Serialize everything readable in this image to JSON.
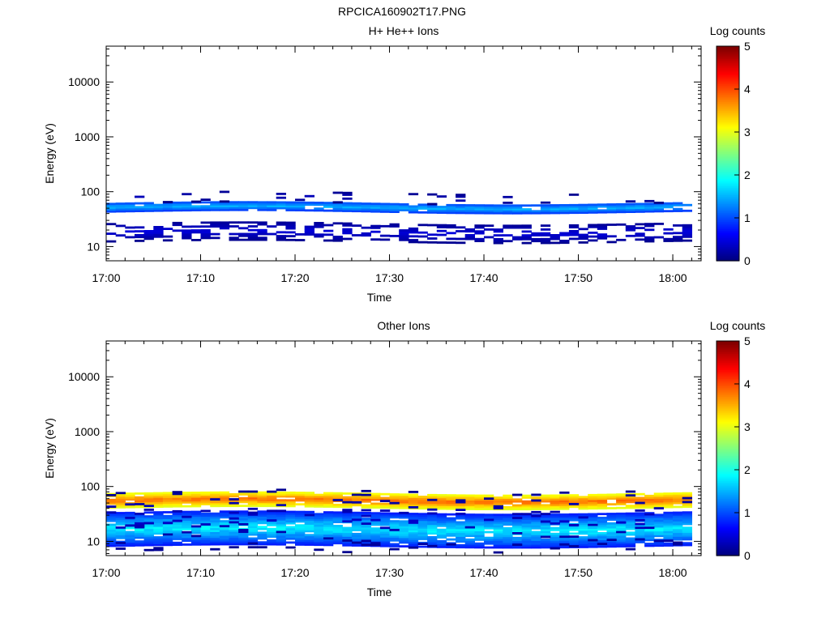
{
  "figure": {
    "title": "RPCICA160902T17.PNG"
  },
  "colors": {
    "colormap": "jet",
    "axis": "#000000",
    "background": "#ffffff"
  },
  "chart_data": [
    {
      "type": "heatmap",
      "title": "H+ He++ Ions",
      "xlabel": "Time",
      "ylabel": "Energy (eV)",
      "x_range": [
        "17:00",
        "18:03"
      ],
      "x_ticks": [
        "17:00",
        "17:10",
        "17:20",
        "17:30",
        "17:40",
        "17:50",
        "18:00"
      ],
      "y_scale": "log",
      "y_range": [
        5.5,
        45000
      ],
      "y_ticks": [
        "10",
        "100",
        "1000",
        "10000"
      ],
      "colorbar": {
        "label": "Log counts",
        "range": [
          0,
          5
        ],
        "ticks": [
          "0",
          "1",
          "2",
          "3",
          "4",
          "5"
        ]
      },
      "bands": [
        {
          "name": "main",
          "time_range": [
            "17:00",
            "18:02"
          ],
          "energy_range": [
            42,
            60
          ],
          "log_counts": [
            0.8,
            1.6
          ]
        },
        {
          "name": "lower",
          "time_range": [
            "17:00",
            "18:02"
          ],
          "energy_range": [
            12,
            26
          ],
          "log_counts": [
            0.0,
            0.5
          ]
        },
        {
          "name": "sparse_upper",
          "time_range": [
            "17:00",
            "18:02"
          ],
          "energy_range": [
            60,
            95
          ],
          "log_counts": [
            0.0,
            0.3
          ]
        }
      ]
    },
    {
      "type": "heatmap",
      "title": "Other Ions",
      "xlabel": "Time",
      "ylabel": "Energy (eV)",
      "x_range": [
        "17:00",
        "18:03"
      ],
      "x_ticks": [
        "17:00",
        "17:10",
        "17:20",
        "17:30",
        "17:40",
        "17:50",
        "18:00"
      ],
      "y_scale": "log",
      "y_range": [
        5.5,
        45000
      ],
      "y_ticks": [
        "10",
        "100",
        "1000",
        "10000"
      ],
      "colorbar": {
        "label": "Log counts",
        "range": [
          0,
          5
        ],
        "ticks": [
          "0",
          "1",
          "2",
          "3",
          "4",
          "5"
        ]
      },
      "bands": [
        {
          "name": "main",
          "time_range": [
            "17:00",
            "18:02"
          ],
          "energy_range": [
            40,
            72
          ],
          "log_counts": [
            2.8,
            4.0
          ]
        },
        {
          "name": "lower",
          "time_range": [
            "17:00",
            "18:02"
          ],
          "energy_range": [
            8,
            32
          ],
          "log_counts": [
            0.5,
            2.0
          ]
        },
        {
          "name": "sparse_edges",
          "time_range": [
            "17:00",
            "18:02"
          ],
          "energy_range": [
            6,
            85
          ],
          "log_counts": [
            0.0,
            0.4
          ]
        }
      ]
    }
  ]
}
